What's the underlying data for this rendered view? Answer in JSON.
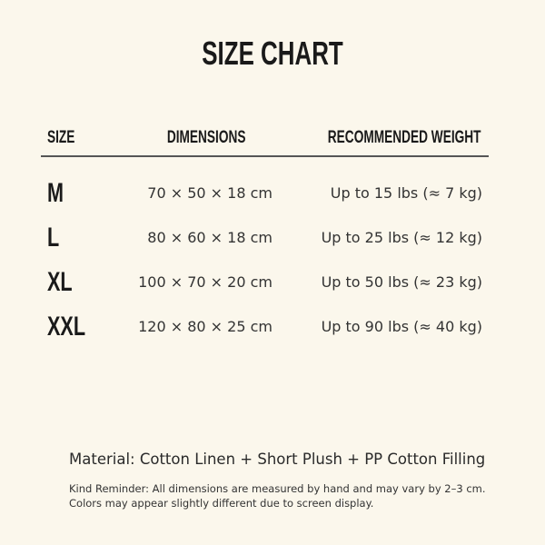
{
  "title": "SIZE CHART",
  "headers": {
    "size": "SIZE",
    "dimensions": "DIMENSIONS",
    "weight": "RECOMMENDED WEIGHT"
  },
  "rows": [
    {
      "size": "M",
      "dimensions": "70 × 50 × 18 cm",
      "weight": "Up to 15 lbs (≈ 7 kg)"
    },
    {
      "size": "L",
      "dimensions": "80 × 60 × 18 cm",
      "weight": "Up to 25 lbs (≈ 12 kg)"
    },
    {
      "size": "XL",
      "dimensions": "100 × 70 × 20 cm",
      "weight": "Up to 50 lbs (≈ 23 kg)"
    },
    {
      "size": "XXL",
      "dimensions": "120 × 80 × 25 cm",
      "weight": "Up to 90 lbs (≈ 40 kg)"
    }
  ],
  "material": "Material: Cotton Linen + Short Plush + PP Cotton Filling",
  "reminder": [
    "Kind Reminder: All dimensions are measured by hand and may vary by 2–3 cm.",
    "Colors may appear slightly different due to screen display."
  ],
  "colors": {
    "background": "#fbf7ec",
    "text": "#1a1a1a"
  }
}
